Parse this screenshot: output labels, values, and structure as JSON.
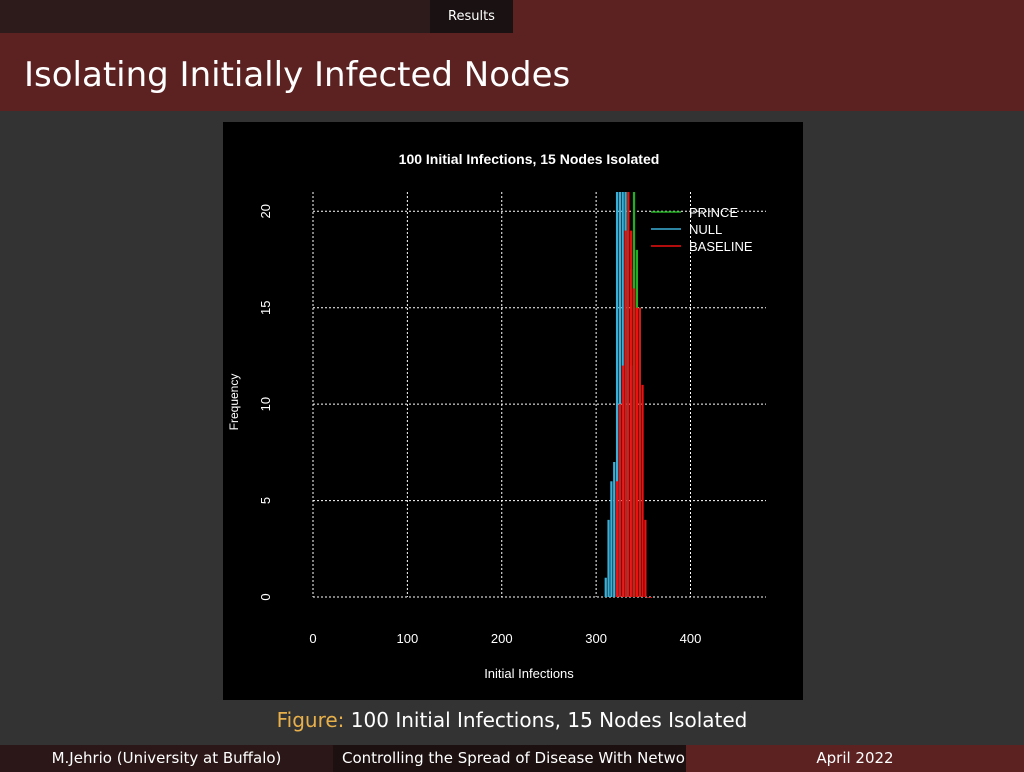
{
  "header": {
    "section": "Results",
    "title": "Isolating Initially Infected Nodes"
  },
  "figure": {
    "label": "Figure:",
    "caption": "100 Initial Infections, 15 Nodes Isolated"
  },
  "footer": {
    "author": "M.Jehrio  (University at Buffalo)",
    "talk_title": "Controlling the Spread of Disease With Network",
    "date": "April 2022"
  },
  "chart_data": {
    "type": "bar",
    "title": "100  Initial Infections,  15 Nodes Isolated",
    "xlabel": "Initial Infections",
    "ylabel": "Frequency",
    "xlim": [
      0,
      480
    ],
    "ylim": [
      0,
      21
    ],
    "xticks": [
      0,
      100,
      200,
      300,
      400
    ],
    "yticks": [
      0,
      5,
      10,
      15,
      20
    ],
    "grid": true,
    "legend_position": "top-right",
    "legend": [
      {
        "name": "PRINCE",
        "color": "#22b022"
      },
      {
        "name": "NULL",
        "color": "#3ab0d8"
      },
      {
        "name": "BASELINE",
        "color": "#ee1111"
      }
    ],
    "bin_width": 3,
    "series": [
      {
        "name": "PRINCE",
        "color": "#22b022",
        "x": [
          327,
          330,
          333,
          336,
          339,
          342,
          345
        ],
        "values": [
          10,
          21,
          21,
          17,
          21,
          18,
          15
        ]
      },
      {
        "name": "NULL",
        "color": "#3ab0d8",
        "x": [
          309,
          312,
          315,
          318,
          321,
          324,
          327,
          330,
          333,
          336
        ],
        "values": [
          1,
          4,
          6,
          7,
          21,
          21,
          21,
          21,
          19,
          12
        ]
      },
      {
        "name": "BASELINE",
        "color": "#ee1111",
        "x": [
          321,
          324,
          327,
          330,
          333,
          336,
          339,
          342,
          345,
          348,
          351,
          354,
          357
        ],
        "values": [
          6,
          10,
          12,
          19,
          21,
          19,
          16,
          15,
          15,
          11,
          4,
          0,
          0
        ]
      }
    ]
  }
}
